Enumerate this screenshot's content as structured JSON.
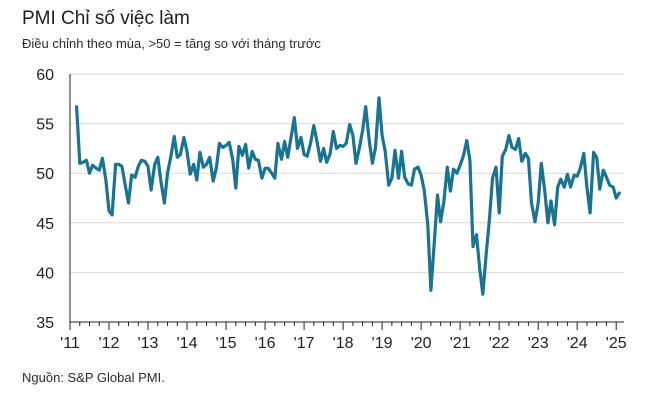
{
  "title": "PMI Chỉ số việc làm",
  "subtitle": "Điều chỉnh theo mùa, >50 = tăng so với tháng trước",
  "source": "Nguồn: S&P Global PMI.",
  "colors": {
    "line": "#1a7390",
    "grid": "#d9d9d9",
    "axis": "#222222"
  },
  "chart_data": {
    "type": "line",
    "ylim": [
      35,
      60
    ],
    "yticks": [
      35,
      40,
      45,
      50,
      55,
      60
    ],
    "xlim": [
      2011.0,
      2025.2
    ],
    "xticks": [
      {
        "label": "'11",
        "value": 2011
      },
      {
        "label": "'12",
        "value": 2012
      },
      {
        "label": "'13",
        "value": 2013
      },
      {
        "label": "'14",
        "value": 2014
      },
      {
        "label": "'15",
        "value": 2015
      },
      {
        "label": "'16",
        "value": 2016
      },
      {
        "label": "'17",
        "value": 2017
      },
      {
        "label": "'18",
        "value": 2018
      },
      {
        "label": "'19",
        "value": 2019
      },
      {
        "label": "'20",
        "value": 2020
      },
      {
        "label": "'21",
        "value": 2021
      },
      {
        "label": "'22",
        "value": 2022
      },
      {
        "label": "'23",
        "value": 2023
      },
      {
        "label": "'24",
        "value": 2024
      },
      {
        "label": "'25",
        "value": 2025
      }
    ],
    "grid": true,
    "series": [
      {
        "values": [
          [
            2011.17,
            56.7
          ],
          [
            2011.25,
            51.0
          ],
          [
            2011.33,
            51.1
          ],
          [
            2011.42,
            51.3
          ],
          [
            2011.5,
            50.0
          ],
          [
            2011.58,
            50.8
          ],
          [
            2011.67,
            50.5
          ],
          [
            2011.75,
            50.3
          ],
          [
            2011.83,
            51.5
          ],
          [
            2011.92,
            49.3
          ],
          [
            2012.0,
            46.2
          ],
          [
            2012.08,
            45.8
          ],
          [
            2012.17,
            50.9
          ],
          [
            2012.25,
            50.9
          ],
          [
            2012.33,
            50.7
          ],
          [
            2012.42,
            48.7
          ],
          [
            2012.5,
            47.0
          ],
          [
            2012.58,
            49.8
          ],
          [
            2012.67,
            49.6
          ],
          [
            2012.75,
            50.7
          ],
          [
            2012.83,
            51.3
          ],
          [
            2012.92,
            51.2
          ],
          [
            2013.0,
            50.7
          ],
          [
            2013.08,
            48.3
          ],
          [
            2013.17,
            50.9
          ],
          [
            2013.25,
            51.6
          ],
          [
            2013.33,
            49.2
          ],
          [
            2013.42,
            47.0
          ],
          [
            2013.5,
            50.0
          ],
          [
            2013.58,
            51.6
          ],
          [
            2013.67,
            53.7
          ],
          [
            2013.75,
            51.6
          ],
          [
            2013.83,
            51.9
          ],
          [
            2013.92,
            53.6
          ],
          [
            2014.0,
            52.2
          ],
          [
            2014.08,
            49.9
          ],
          [
            2014.17,
            50.9
          ],
          [
            2014.25,
            49.3
          ],
          [
            2014.33,
            52.1
          ],
          [
            2014.42,
            50.6
          ],
          [
            2014.5,
            50.9
          ],
          [
            2014.58,
            51.6
          ],
          [
            2014.67,
            49.2
          ],
          [
            2014.75,
            50.5
          ],
          [
            2014.83,
            53.0
          ],
          [
            2014.92,
            52.6
          ],
          [
            2015.0,
            52.8
          ],
          [
            2015.08,
            53.1
          ],
          [
            2015.17,
            51.4
          ],
          [
            2015.25,
            48.5
          ],
          [
            2015.33,
            52.7
          ],
          [
            2015.42,
            51.8
          ],
          [
            2015.5,
            52.9
          ],
          [
            2015.58,
            50.5
          ],
          [
            2015.67,
            52.2
          ],
          [
            2015.75,
            51.4
          ],
          [
            2015.83,
            51.3
          ],
          [
            2015.92,
            49.5
          ],
          [
            2016.0,
            50.5
          ],
          [
            2016.08,
            50.5
          ],
          [
            2016.17,
            50.0
          ],
          [
            2016.25,
            49.5
          ],
          [
            2016.33,
            53.0
          ],
          [
            2016.42,
            51.4
          ],
          [
            2016.5,
            53.2
          ],
          [
            2016.58,
            51.6
          ],
          [
            2016.67,
            53.7
          ],
          [
            2016.75,
            55.6
          ],
          [
            2016.83,
            52.5
          ],
          [
            2016.92,
            53.6
          ],
          [
            2017.0,
            51.9
          ],
          [
            2017.08,
            51.7
          ],
          [
            2017.17,
            53.1
          ],
          [
            2017.25,
            54.8
          ],
          [
            2017.33,
            53.2
          ],
          [
            2017.42,
            51.2
          ],
          [
            2017.5,
            52.5
          ],
          [
            2017.58,
            51.1
          ],
          [
            2017.67,
            52.0
          ],
          [
            2017.75,
            54.2
          ],
          [
            2017.83,
            52.5
          ],
          [
            2017.92,
            52.8
          ],
          [
            2018.0,
            52.7
          ],
          [
            2018.08,
            53.0
          ],
          [
            2018.17,
            54.9
          ],
          [
            2018.25,
            53.8
          ],
          [
            2018.33,
            51.0
          ],
          [
            2018.42,
            52.6
          ],
          [
            2018.5,
            54.3
          ],
          [
            2018.58,
            56.7
          ],
          [
            2018.67,
            53.3
          ],
          [
            2018.75,
            51.0
          ],
          [
            2018.83,
            52.6
          ],
          [
            2018.92,
            57.6
          ],
          [
            2019.0,
            53.8
          ],
          [
            2019.08,
            52.2
          ],
          [
            2019.17,
            48.8
          ],
          [
            2019.25,
            49.5
          ],
          [
            2019.33,
            52.3
          ],
          [
            2019.42,
            49.5
          ],
          [
            2019.5,
            52.2
          ],
          [
            2019.58,
            49.6
          ],
          [
            2019.67,
            48.9
          ],
          [
            2019.75,
            48.8
          ],
          [
            2019.83,
            50.4
          ],
          [
            2019.92,
            50.6
          ],
          [
            2020.0,
            49.8
          ],
          [
            2020.08,
            48.3
          ],
          [
            2020.17,
            44.8
          ],
          [
            2020.25,
            38.2
          ],
          [
            2020.33,
            42.6
          ],
          [
            2020.42,
            47.8
          ],
          [
            2020.5,
            45.1
          ],
          [
            2020.58,
            47.1
          ],
          [
            2020.67,
            50.6
          ],
          [
            2020.75,
            48.2
          ],
          [
            2020.83,
            50.4
          ],
          [
            2020.92,
            50.0
          ],
          [
            2021.0,
            50.8
          ],
          [
            2021.08,
            51.7
          ],
          [
            2021.17,
            53.3
          ],
          [
            2021.25,
            51.3
          ],
          [
            2021.33,
            42.6
          ],
          [
            2021.42,
            43.8
          ],
          [
            2021.5,
            40.5
          ],
          [
            2021.58,
            37.8
          ],
          [
            2021.67,
            42.0
          ],
          [
            2021.75,
            45.3
          ],
          [
            2021.83,
            49.5
          ],
          [
            2021.92,
            50.6
          ],
          [
            2022.0,
            46.0
          ],
          [
            2022.08,
            51.7
          ],
          [
            2022.17,
            52.4
          ],
          [
            2022.25,
            53.8
          ],
          [
            2022.33,
            52.6
          ],
          [
            2022.42,
            52.4
          ],
          [
            2022.5,
            53.5
          ],
          [
            2022.58,
            51.2
          ],
          [
            2022.67,
            52.0
          ],
          [
            2022.75,
            51.5
          ],
          [
            2022.83,
            47.0
          ],
          [
            2022.92,
            45.1
          ],
          [
            2023.0,
            47.0
          ],
          [
            2023.08,
            51.0
          ],
          [
            2023.17,
            48.2
          ],
          [
            2023.25,
            45.0
          ],
          [
            2023.33,
            47.2
          ],
          [
            2023.42,
            44.8
          ],
          [
            2023.5,
            48.6
          ],
          [
            2023.58,
            49.4
          ],
          [
            2023.67,
            48.6
          ],
          [
            2023.75,
            49.9
          ],
          [
            2023.83,
            48.6
          ],
          [
            2023.92,
            49.8
          ],
          [
            2024.0,
            49.7
          ],
          [
            2024.08,
            50.5
          ],
          [
            2024.17,
            52.0
          ],
          [
            2024.25,
            48.6
          ],
          [
            2024.33,
            46.0
          ],
          [
            2024.42,
            52.1
          ],
          [
            2024.5,
            51.6
          ],
          [
            2024.58,
            48.4
          ],
          [
            2024.67,
            50.3
          ],
          [
            2024.75,
            49.6
          ],
          [
            2024.83,
            48.8
          ],
          [
            2024.92,
            48.6
          ],
          [
            2025.0,
            47.5
          ],
          [
            2025.08,
            48.0
          ]
        ]
      }
    ]
  }
}
